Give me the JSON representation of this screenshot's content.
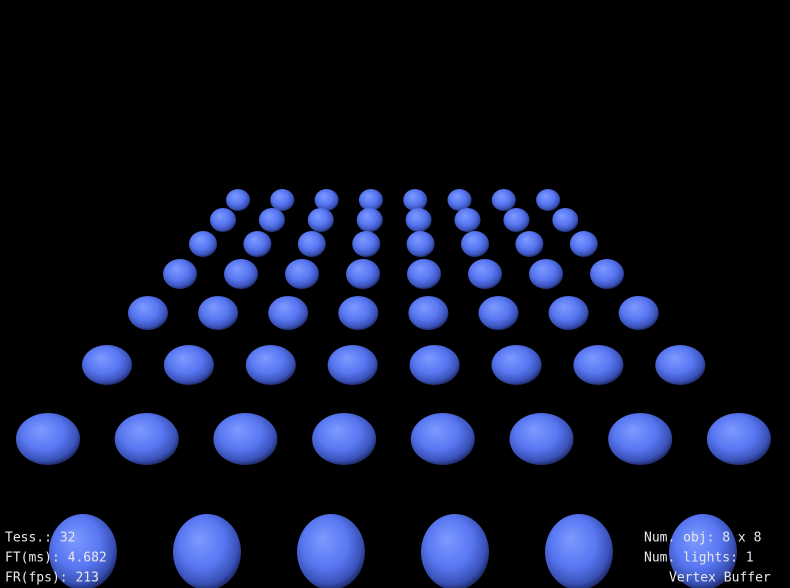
{
  "overlay": {
    "left": [
      "Tess.: 32",
      "FT(ms): 4.682",
      "FR(fps): 213"
    ],
    "right": [
      "Num. obj: 8 x 8",
      "Num. lights: 1",
      "Vertex Buffer"
    ]
  }
}
